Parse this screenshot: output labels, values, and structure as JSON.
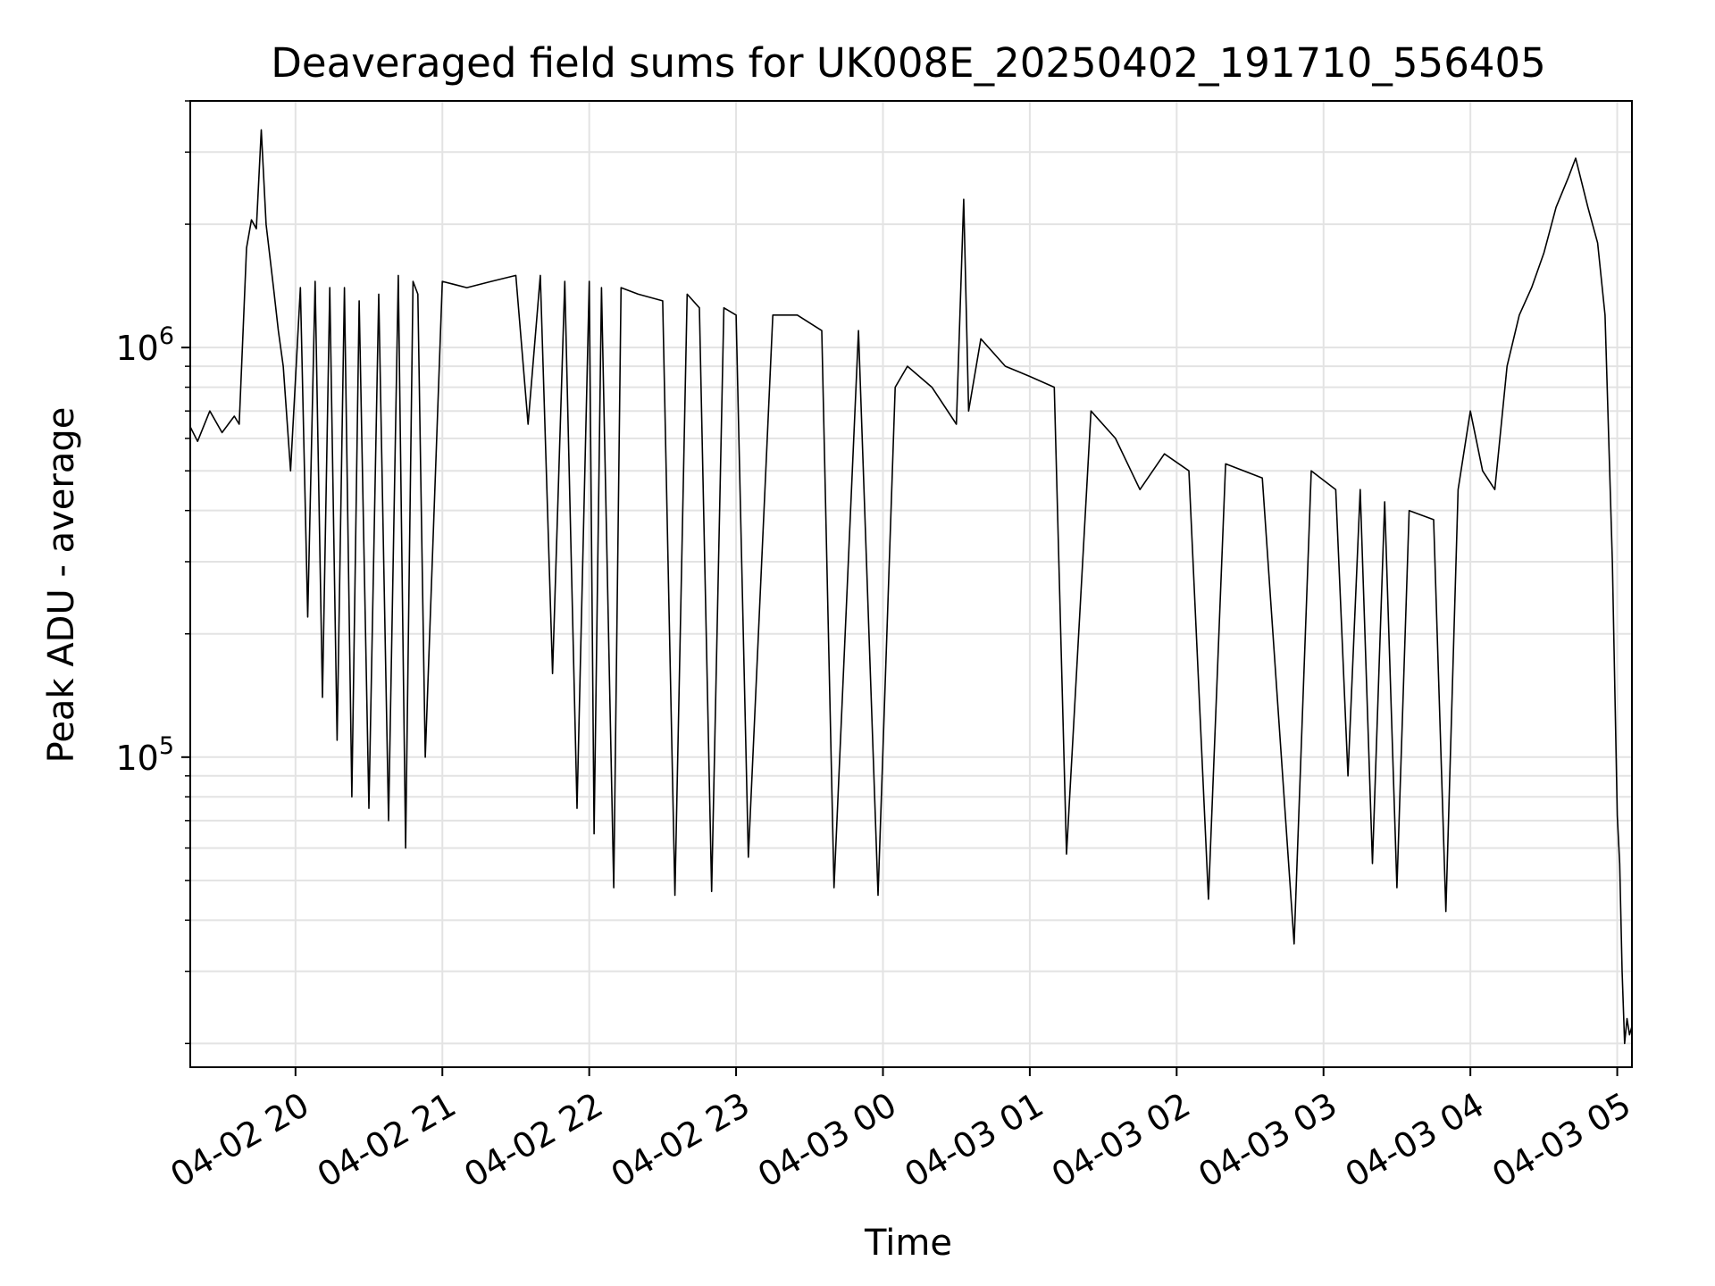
{
  "chart_data": {
    "type": "line",
    "title": "Deaveraged field sums for UK008E_20250402_191710_556405",
    "xlabel": "Time",
    "ylabel": "Peak ADU - average",
    "yscale": "log",
    "ylim": [
      17500,
      4000000
    ],
    "xlim": [
      "2025-04-02 19:17",
      "2025-04-03 05:06"
    ],
    "grid": true,
    "line_color": "#000000",
    "x_ticks": [
      {
        "value": "2025-04-02 20:00",
        "label": "04-02 20"
      },
      {
        "value": "2025-04-02 21:00",
        "label": "04-02 21"
      },
      {
        "value": "2025-04-02 22:00",
        "label": "04-02 22"
      },
      {
        "value": "2025-04-02 23:00",
        "label": "04-02 23"
      },
      {
        "value": "2025-04-03 00:00",
        "label": "04-03 00"
      },
      {
        "value": "2025-04-03 01:00",
        "label": "04-03 01"
      },
      {
        "value": "2025-04-03 02:00",
        "label": "04-03 02"
      },
      {
        "value": "2025-04-03 03:00",
        "label": "04-03 03"
      },
      {
        "value": "2025-04-03 04:00",
        "label": "04-03 04"
      },
      {
        "value": "2025-04-03 05:00",
        "label": "04-03 05"
      }
    ],
    "y_major_ticks": [
      {
        "value": 100000,
        "base": "10",
        "exp": "5"
      },
      {
        "value": 1000000,
        "base": "10",
        "exp": "6"
      }
    ],
    "series": [
      {
        "x": [
          "2025-04-02 19:17",
          "2025-04-02 19:20",
          "2025-04-02 19:25",
          "2025-04-02 19:30",
          "2025-04-02 19:35",
          "2025-04-02 19:37",
          "2025-04-02 19:40",
          "2025-04-02 19:42",
          "2025-04-02 19:44",
          "2025-04-02 19:46",
          "2025-04-02 19:48",
          "2025-04-02 19:51",
          "2025-04-02 19:53",
          "2025-04-02 19:55",
          "2025-04-02 19:58",
          "2025-04-02 20:02",
          "2025-04-02 20:05",
          "2025-04-02 20:08",
          "2025-04-02 20:11",
          "2025-04-02 20:14",
          "2025-04-02 20:17",
          "2025-04-02 20:20",
          "2025-04-02 20:23",
          "2025-04-02 20:26",
          "2025-04-02 20:30",
          "2025-04-02 20:34",
          "2025-04-02 20:38",
          "2025-04-02 20:42",
          "2025-04-02 20:45",
          "2025-04-02 20:48",
          "2025-04-02 20:50",
          "2025-04-02 20:53",
          "2025-04-02 21:00",
          "2025-04-02 21:10",
          "2025-04-02 21:20",
          "2025-04-02 21:30",
          "2025-04-02 21:35",
          "2025-04-02 21:40",
          "2025-04-02 21:45",
          "2025-04-02 21:50",
          "2025-04-02 21:55",
          "2025-04-02 22:00",
          "2025-04-02 22:02",
          "2025-04-02 22:05",
          "2025-04-02 22:10",
          "2025-04-02 22:13",
          "2025-04-02 22:20",
          "2025-04-02 22:30",
          "2025-04-02 22:35",
          "2025-04-02 22:40",
          "2025-04-02 22:45",
          "2025-04-02 22:50",
          "2025-04-02 22:55",
          "2025-04-02 23:00",
          "2025-04-02 23:05",
          "2025-04-02 23:15",
          "2025-04-02 23:25",
          "2025-04-02 23:35",
          "2025-04-02 23:40",
          "2025-04-02 23:50",
          "2025-04-02 23:58",
          "2025-04-03 00:05",
          "2025-04-03 00:10",
          "2025-04-03 00:20",
          "2025-04-03 00:30",
          "2025-04-03 00:33",
          "2025-04-03 00:35",
          "2025-04-03 00:40",
          "2025-04-03 00:50",
          "2025-04-03 01:00",
          "2025-04-03 01:10",
          "2025-04-03 01:15",
          "2025-04-03 01:25",
          "2025-04-03 01:35",
          "2025-04-03 01:45",
          "2025-04-03 01:55",
          "2025-04-03 02:05",
          "2025-04-03 02:13",
          "2025-04-03 02:20",
          "2025-04-03 02:35",
          "2025-04-03 02:48",
          "2025-04-03 02:55",
          "2025-04-03 03:05",
          "2025-04-03 03:10",
          "2025-04-03 03:15",
          "2025-04-03 03:20",
          "2025-04-03 03:25",
          "2025-04-03 03:30",
          "2025-04-03 03:35",
          "2025-04-03 03:45",
          "2025-04-03 03:50",
          "2025-04-03 03:55",
          "2025-04-03 04:00",
          "2025-04-03 04:05",
          "2025-04-03 04:10",
          "2025-04-03 04:15",
          "2025-04-03 04:20",
          "2025-04-03 04:25",
          "2025-04-03 04:30",
          "2025-04-03 04:35",
          "2025-04-03 04:40",
          "2025-04-03 04:43",
          "2025-04-03 04:48",
          "2025-04-03 04:52",
          "2025-04-03 04:55",
          "2025-04-03 04:58",
          "2025-04-03 05:00",
          "2025-04-03 05:01",
          "2025-04-03 05:02",
          "2025-04-03 05:03",
          "2025-04-03 05:04",
          "2025-04-03 05:05",
          "2025-04-03 05:06"
        ],
        "values": [
          640000,
          590000,
          700000,
          620000,
          680000,
          650000,
          1750000,
          2050000,
          1950000,
          3400000,
          2000000,
          1400000,
          1100000,
          900000,
          500000,
          1400000,
          220000,
          1450000,
          140000,
          1400000,
          110000,
          1400000,
          80000,
          1300000,
          75000,
          1350000,
          70000,
          1500000,
          60000,
          1450000,
          1350000,
          100000,
          1450000,
          1400000,
          1450000,
          1500000,
          650000,
          1500000,
          160000,
          1450000,
          75000,
          1450000,
          65000,
          1400000,
          48000,
          1400000,
          1350000,
          1300000,
          46000,
          1350000,
          1250000,
          47000,
          1250000,
          1200000,
          57000,
          1200000,
          1200000,
          1100000,
          48000,
          1100000,
          46000,
          800000,
          900000,
          800000,
          650000,
          2300000,
          700000,
          1050000,
          900000,
          850000,
          800000,
          58000,
          700000,
          600000,
          450000,
          550000,
          500000,
          45000,
          520000,
          480000,
          35000,
          500000,
          450000,
          90000,
          450000,
          55000,
          420000,
          48000,
          400000,
          380000,
          42000,
          450000,
          700000,
          500000,
          450000,
          900000,
          1200000,
          1400000,
          1700000,
          2200000,
          2600000,
          2900000,
          2200000,
          1800000,
          1200000,
          300000,
          72000,
          55000,
          30000,
          20000,
          23000,
          21000,
          22000
        ],
        "color": "#000000"
      }
    ]
  }
}
